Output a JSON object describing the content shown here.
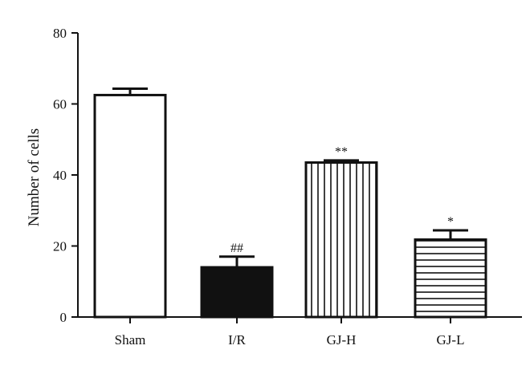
{
  "chart_data": {
    "type": "bar",
    "title": "",
    "xlabel": "",
    "ylabel": "Number of cells",
    "ylim": [
      0,
      80
    ],
    "yticks": [
      0,
      20,
      40,
      60,
      80
    ],
    "categories": [
      "Sham",
      "I/R",
      "GJ-H",
      "GJ-L"
    ],
    "values": [
      62.5,
      14.0,
      43.5,
      21.8
    ],
    "errors": [
      1.8,
      3.0,
      0.6,
      2.6
    ],
    "significance": [
      "",
      "##",
      "**",
      "*"
    ],
    "fills": [
      "none",
      "solid",
      "vertical-lines",
      "horizontal-lines"
    ],
    "grid": false,
    "legend": "none",
    "colors": {
      "stroke": "#111111",
      "solid_fill": "#111111",
      "background": "#ffffff"
    }
  }
}
